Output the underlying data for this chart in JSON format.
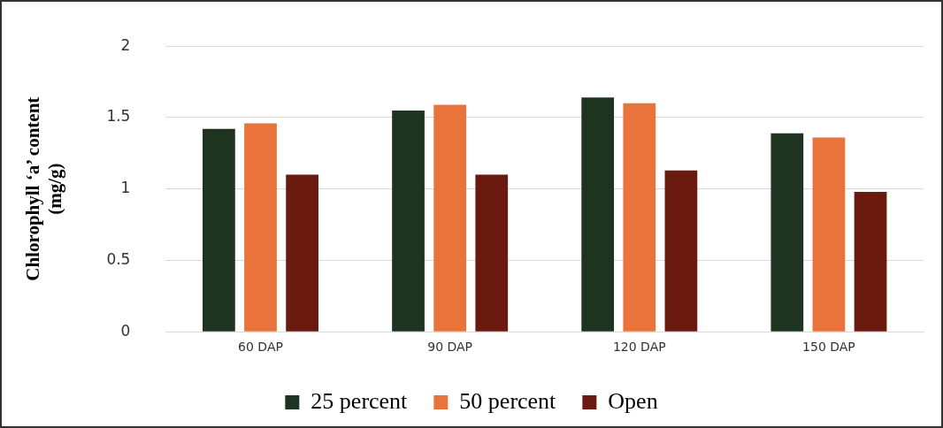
{
  "chart_data": {
    "type": "bar",
    "ylabel": "Chlorophyll ‘a’ content (mg/g)",
    "categories": [
      "60 DAP",
      "90 DAP",
      "120 DAP",
      "150 DAP"
    ],
    "series": [
      {
        "name": "25 percent",
        "color": "#1e3320",
        "values": [
          1.42,
          1.55,
          1.64,
          1.39
        ]
      },
      {
        "name": "50 percent",
        "color": "#e8743b",
        "values": [
          1.46,
          1.59,
          1.6,
          1.36
        ]
      },
      {
        "name": "Open",
        "color": "#6b1a10",
        "values": [
          1.1,
          1.1,
          1.13,
          0.98
        ]
      }
    ],
    "ylim": [
      0,
      2
    ],
    "yticks": [
      0,
      0.5,
      1,
      1.5,
      2
    ],
    "grid": "y",
    "legend": "bottom"
  }
}
